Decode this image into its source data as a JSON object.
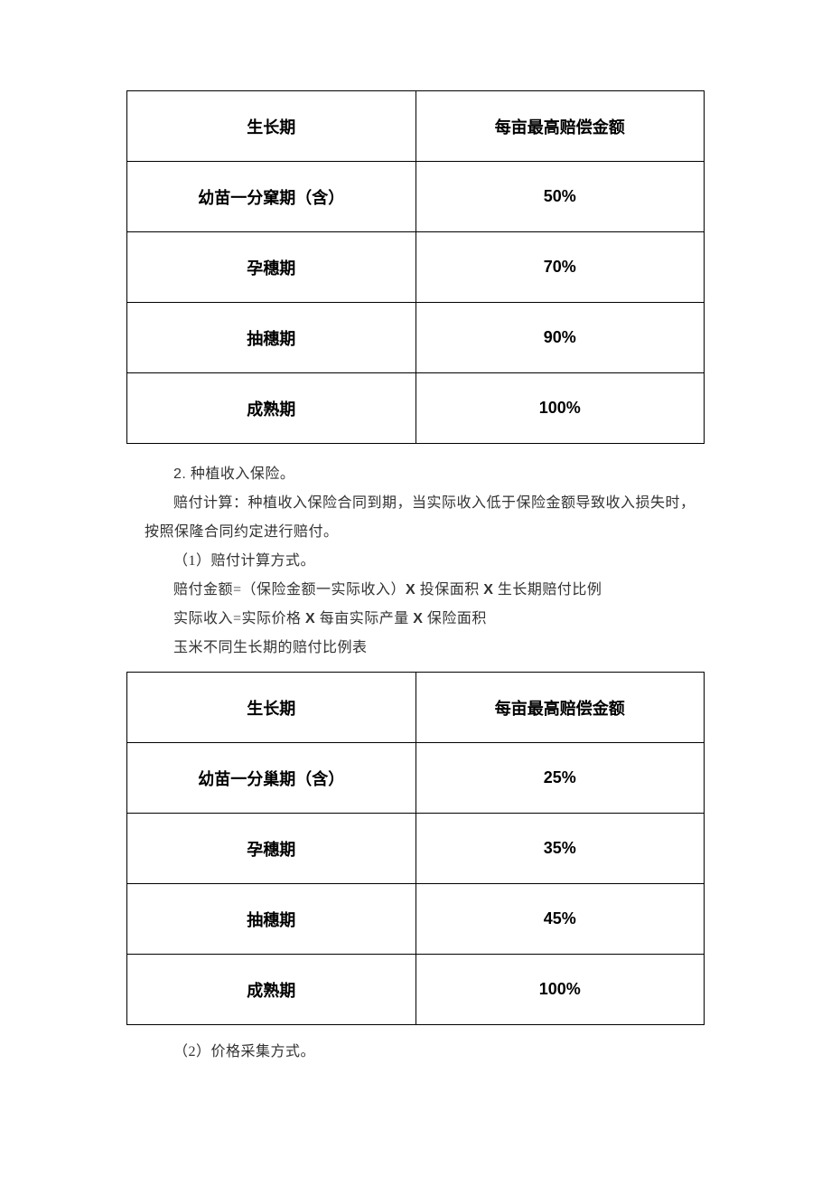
{
  "table1": {
    "header": {
      "col1": "生长期",
      "col2": "每亩最高赔偿金额"
    },
    "rows": [
      {
        "period": "幼苗一分窠期（含）",
        "value": "50%"
      },
      {
        "period": "孕穗期",
        "value": "70%"
      },
      {
        "period": "抽穗期",
        "value": "90%"
      },
      {
        "period": "成熟期",
        "value": "100%"
      }
    ]
  },
  "section": {
    "line1_prefix": "2.",
    "line1_rest": " 种植收入保险。",
    "line2": "赔付计算：种植收入保险合同到期，当实际收入低于保险金额导致收入损失时，按照保隆合同约定进行赔付。",
    "line3": "（1）赔付计算方式。",
    "line4_a": "赔付金额=（保险金额一实际收入）",
    "line4_b": " 投保面积 ",
    "line4_c": " 生长期赔付比例",
    "line5_a": "实际收入=实际价格 ",
    "line5_b": " 每亩实际产量 ",
    "line5_c": " 保险面积",
    "line6": "玉米不同生长期的赔付比例表",
    "x": "X"
  },
  "table2": {
    "header": {
      "col1": "生长期",
      "col2": "每亩最高赔偿金额"
    },
    "rows": [
      {
        "period": "幼苗一分巢期（含）",
        "value": "25%"
      },
      {
        "period": "孕穗期",
        "value": "35%"
      },
      {
        "period": "抽穗期",
        "value": "45%"
      },
      {
        "period": "成熟期",
        "value": "100%"
      }
    ]
  },
  "tail": {
    "line1": "（2）价格采集方式。"
  }
}
